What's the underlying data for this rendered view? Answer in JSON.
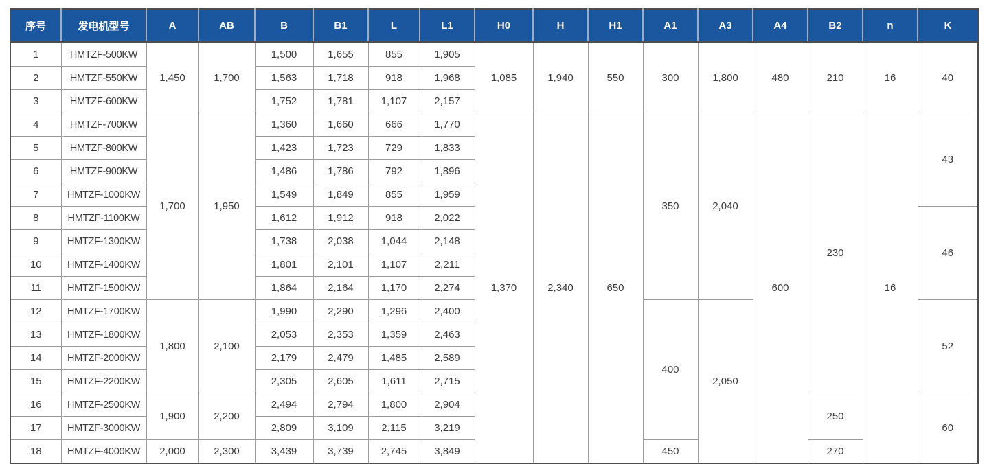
{
  "table": {
    "style": {
      "header_bg": "#1b579e",
      "header_text": "#ffffff",
      "header_divider": "#a3adbd",
      "grid_line": "#9c9c9c",
      "outer_border": "#4d4d4d",
      "body_text": "#3c3c3c",
      "body_bg": "#ffffff"
    },
    "columns": [
      {
        "key": "index",
        "label": "序号"
      },
      {
        "key": "model",
        "label": "发电机型号"
      },
      {
        "key": "A",
        "label": "A"
      },
      {
        "key": "AB",
        "label": "AB"
      },
      {
        "key": "B",
        "label": "B"
      },
      {
        "key": "B1",
        "label": "B1"
      },
      {
        "key": "L",
        "label": "L"
      },
      {
        "key": "L1",
        "label": "L1"
      },
      {
        "key": "H0",
        "label": "H0"
      },
      {
        "key": "H",
        "label": "H"
      },
      {
        "key": "H1",
        "label": "H1"
      },
      {
        "key": "A1",
        "label": "A1"
      },
      {
        "key": "A3",
        "label": "A3"
      },
      {
        "key": "A4",
        "label": "A4"
      },
      {
        "key": "B2",
        "label": "B2"
      },
      {
        "key": "n",
        "label": "n"
      },
      {
        "key": "K",
        "label": "K"
      }
    ],
    "rows": [
      {
        "cells": [
          {
            "v": "1",
            "k": "index"
          },
          {
            "v": "HMTZF-500KW",
            "k": "model"
          },
          {
            "v": "1,450",
            "rs": 3,
            "k": "A"
          },
          {
            "v": "1,700",
            "rs": 3,
            "k": "AB"
          },
          {
            "v": "1,500",
            "k": "B"
          },
          {
            "v": "1,655",
            "k": "B1"
          },
          {
            "v": "855",
            "k": "L"
          },
          {
            "v": "1,905",
            "k": "L1"
          },
          {
            "v": "1,085",
            "rs": 3,
            "k": "H0"
          },
          {
            "v": "1,940",
            "rs": 3,
            "k": "H"
          },
          {
            "v": "550",
            "rs": 3,
            "k": "H1"
          },
          {
            "v": "300",
            "rs": 3,
            "k": "A1"
          },
          {
            "v": "1,800",
            "rs": 3,
            "k": "A3"
          },
          {
            "v": "480",
            "rs": 3,
            "k": "A4"
          },
          {
            "v": "210",
            "rs": 3,
            "k": "B2"
          },
          {
            "v": "16",
            "rs": 3,
            "k": "n"
          },
          {
            "v": "40",
            "rs": 3,
            "k": "K"
          }
        ]
      },
      {
        "cells": [
          {
            "v": "2",
            "k": "index"
          },
          {
            "v": "HMTZF-550KW",
            "k": "model"
          },
          {
            "v": "1,563",
            "k": "B"
          },
          {
            "v": "1,718",
            "k": "B1"
          },
          {
            "v": "918",
            "k": "L"
          },
          {
            "v": "1,968",
            "k": "L1"
          }
        ]
      },
      {
        "cells": [
          {
            "v": "3",
            "k": "index"
          },
          {
            "v": "HMTZF-600KW",
            "k": "model"
          },
          {
            "v": "1,752",
            "k": "B"
          },
          {
            "v": "1,781",
            "k": "B1"
          },
          {
            "v": "1,107",
            "k": "L"
          },
          {
            "v": "2,157",
            "k": "L1"
          }
        ]
      },
      {
        "cells": [
          {
            "v": "4",
            "k": "index"
          },
          {
            "v": "HMTZF-700KW",
            "k": "model"
          },
          {
            "v": "1,700",
            "rs": 8,
            "k": "A"
          },
          {
            "v": "1,950",
            "rs": 8,
            "k": "AB"
          },
          {
            "v": "1,360",
            "k": "B"
          },
          {
            "v": "1,660",
            "k": "B1"
          },
          {
            "v": "666",
            "k": "L"
          },
          {
            "v": "1,770",
            "k": "L1"
          },
          {
            "v": "1,370",
            "rs": 15,
            "k": "H0"
          },
          {
            "v": "2,340",
            "rs": 15,
            "k": "H"
          },
          {
            "v": "650",
            "rs": 15,
            "k": "H1"
          },
          {
            "v": "350",
            "rs": 8,
            "k": "A1"
          },
          {
            "v": "2,040",
            "rs": 8,
            "k": "A3"
          },
          {
            "v": "600",
            "rs": 15,
            "k": "A4"
          },
          {
            "v": "230",
            "rs": 12,
            "k": "B2"
          },
          {
            "v": "16",
            "rs": 15,
            "k": "n"
          },
          {
            "v": "43",
            "rs": 4,
            "k": "K"
          }
        ]
      },
      {
        "cells": [
          {
            "v": "5",
            "k": "index"
          },
          {
            "v": "HMTZF-800KW",
            "k": "model"
          },
          {
            "v": "1,423",
            "k": "B"
          },
          {
            "v": "1,723",
            "k": "B1"
          },
          {
            "v": "729",
            "k": "L"
          },
          {
            "v": "1,833",
            "k": "L1"
          }
        ]
      },
      {
        "cells": [
          {
            "v": "6",
            "k": "index"
          },
          {
            "v": "HMTZF-900KW",
            "k": "model"
          },
          {
            "v": "1,486",
            "k": "B"
          },
          {
            "v": "1,786",
            "k": "B1"
          },
          {
            "v": "792",
            "k": "L"
          },
          {
            "v": "1,896",
            "k": "L1"
          }
        ]
      },
      {
        "cells": [
          {
            "v": "7",
            "k": "index"
          },
          {
            "v": "HMTZF-1000KW",
            "k": "model"
          },
          {
            "v": "1,549",
            "k": "B"
          },
          {
            "v": "1,849",
            "k": "B1"
          },
          {
            "v": "855",
            "k": "L"
          },
          {
            "v": "1,959",
            "k": "L1"
          }
        ]
      },
      {
        "cells": [
          {
            "v": "8",
            "k": "index"
          },
          {
            "v": "HMTZF-1100KW",
            "k": "model"
          },
          {
            "v": "1,612",
            "k": "B"
          },
          {
            "v": "1,912",
            "k": "B1"
          },
          {
            "v": "918",
            "k": "L"
          },
          {
            "v": "2,022",
            "k": "L1"
          },
          {
            "v": "46",
            "rs": 4,
            "k": "K"
          }
        ]
      },
      {
        "cells": [
          {
            "v": "9",
            "k": "index"
          },
          {
            "v": "HMTZF-1300KW",
            "k": "model"
          },
          {
            "v": "1,738",
            "k": "B"
          },
          {
            "v": "2,038",
            "k": "B1"
          },
          {
            "v": "1,044",
            "k": "L"
          },
          {
            "v": "2,148",
            "k": "L1"
          }
        ]
      },
      {
        "cells": [
          {
            "v": "10",
            "k": "index"
          },
          {
            "v": "HMTZF-1400KW",
            "k": "model"
          },
          {
            "v": "1,801",
            "k": "B"
          },
          {
            "v": "2,101",
            "k": "B1"
          },
          {
            "v": "1,107",
            "k": "L"
          },
          {
            "v": "2,211",
            "k": "L1"
          }
        ]
      },
      {
        "cells": [
          {
            "v": "11",
            "k": "index"
          },
          {
            "v": "HMTZF-1500KW",
            "k": "model"
          },
          {
            "v": "1,864",
            "k": "B"
          },
          {
            "v": "2,164",
            "k": "B1"
          },
          {
            "v": "1,170",
            "k": "L"
          },
          {
            "v": "2,274",
            "k": "L1"
          }
        ]
      },
      {
        "cells": [
          {
            "v": "12",
            "k": "index"
          },
          {
            "v": "HMTZF-1700KW",
            "k": "model"
          },
          {
            "v": "1,800",
            "rs": 4,
            "k": "A"
          },
          {
            "v": "2,100",
            "rs": 4,
            "k": "AB"
          },
          {
            "v": "1,990",
            "k": "B"
          },
          {
            "v": "2,290",
            "k": "B1"
          },
          {
            "v": "1,296",
            "k": "L"
          },
          {
            "v": "2,400",
            "k": "L1"
          },
          {
            "v": "400",
            "rs": 6,
            "k": "A1"
          },
          {
            "v": "2,050",
            "rs": 7,
            "k": "A3"
          },
          {
            "v": "52",
            "rs": 4,
            "k": "K"
          }
        ]
      },
      {
        "cells": [
          {
            "v": "13",
            "k": "index"
          },
          {
            "v": "HMTZF-1800KW",
            "k": "model"
          },
          {
            "v": "2,053",
            "k": "B"
          },
          {
            "v": "2,353",
            "k": "B1"
          },
          {
            "v": "1,359",
            "k": "L"
          },
          {
            "v": "2,463",
            "k": "L1"
          }
        ]
      },
      {
        "cells": [
          {
            "v": "14",
            "k": "index"
          },
          {
            "v": "HMTZF-2000KW",
            "k": "model"
          },
          {
            "v": "2,179",
            "k": "B"
          },
          {
            "v": "2,479",
            "k": "B1"
          },
          {
            "v": "1,485",
            "k": "L"
          },
          {
            "v": "2,589",
            "k": "L1"
          }
        ]
      },
      {
        "cells": [
          {
            "v": "15",
            "k": "index"
          },
          {
            "v": "HMTZF-2200KW",
            "k": "model"
          },
          {
            "v": "2,305",
            "k": "B"
          },
          {
            "v": "2,605",
            "k": "B1"
          },
          {
            "v": "1,611",
            "k": "L"
          },
          {
            "v": "2,715",
            "k": "L1"
          }
        ]
      },
      {
        "cells": [
          {
            "v": "16",
            "k": "index"
          },
          {
            "v": "HMTZF-2500KW",
            "k": "model"
          },
          {
            "v": "1,900",
            "rs": 2,
            "k": "A"
          },
          {
            "v": "2,200",
            "rs": 2,
            "k": "AB"
          },
          {
            "v": "2,494",
            "k": "B"
          },
          {
            "v": "2,794",
            "k": "B1"
          },
          {
            "v": "1,800",
            "k": "L"
          },
          {
            "v": "2,904",
            "k": "L1"
          },
          {
            "v": "250",
            "rs": 2,
            "k": "B2"
          },
          {
            "v": "60",
            "rs": 3,
            "k": "K"
          }
        ]
      },
      {
        "cells": [
          {
            "v": "17",
            "k": "index"
          },
          {
            "v": "HMTZF-3000KW",
            "k": "model"
          },
          {
            "v": "2,809",
            "k": "B"
          },
          {
            "v": "3,109",
            "k": "B1"
          },
          {
            "v": "2,115",
            "k": "L"
          },
          {
            "v": "3,219",
            "k": "L1"
          }
        ]
      },
      {
        "cells": [
          {
            "v": "18",
            "k": "index"
          },
          {
            "v": "HMTZF-4000KW",
            "k": "model"
          },
          {
            "v": "2,000",
            "k": "A"
          },
          {
            "v": "2,300",
            "k": "AB"
          },
          {
            "v": "3,439",
            "k": "B"
          },
          {
            "v": "3,739",
            "k": "B1"
          },
          {
            "v": "2,745",
            "k": "L"
          },
          {
            "v": "3,849",
            "k": "L1"
          },
          {
            "v": "450",
            "k": "A1"
          },
          {
            "v": "270",
            "k": "B2"
          }
        ]
      }
    ]
  }
}
